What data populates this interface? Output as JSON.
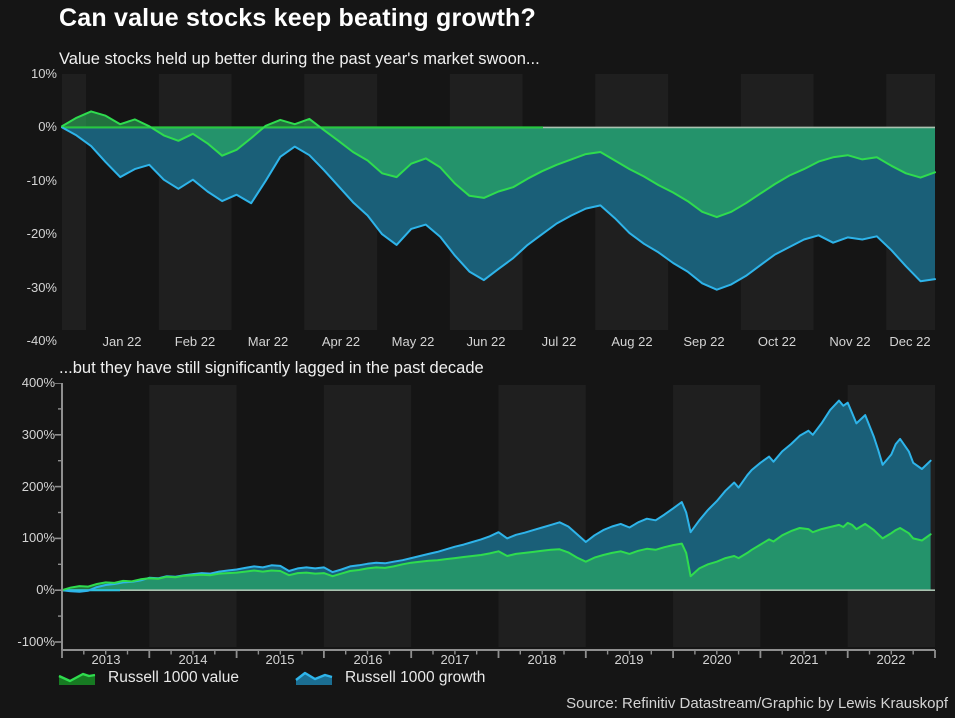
{
  "header": {
    "title": "Can value stocks keep beating growth?",
    "source": "Source: Refinitiv Datastream/Graphic by Lewis Krauskopf"
  },
  "colors": {
    "background": "#151515",
    "band": "#1f1f1f",
    "value_line": "#2fdc4e",
    "growth_line": "#2eb4ea",
    "value_fill": "rgba(46,190,96,0.55)",
    "growth_fill": "#1a5f78",
    "baseline": "#a9c2b0",
    "baseline_accent_top": "#27c840",
    "baseline_accent_bottom": "#2fc4e0",
    "axis": "#8f8f8f",
    "legend_value_fill": "#177a22",
    "legend_growth_fill": "#1b6e92"
  },
  "legend": {
    "items": [
      {
        "id": "value",
        "label": "Russell 1000 value"
      },
      {
        "id": "growth",
        "label": "Russell 1000 growth"
      }
    ]
  },
  "chart_data": [
    {
      "type": "area",
      "title": "Value stocks held up better during the past year's market swoon...",
      "ylabel": "",
      "xlabel": "",
      "y_tick_format": "percent",
      "ylim": [
        -40,
        10
      ],
      "y_ticks": [
        10,
        0,
        -10,
        -20,
        -30,
        -40
      ],
      "x_unit": "months-of-2022",
      "xlim": [
        0,
        12
      ],
      "x_tick_labels": [
        "Jan 22",
        "Feb 22",
        "Mar 22",
        "Apr 22",
        "May 22",
        "Jun 22",
        "Jul 22",
        "Aug 22",
        "Sep 22",
        "Oct 22",
        "Nov 22",
        "Dec 22"
      ],
      "grid": "alternating-month-bands",
      "x": [
        0,
        0.2,
        0.4,
        0.6,
        0.8,
        1,
        1.2,
        1.4,
        1.6,
        1.8,
        2,
        2.2,
        2.4,
        2.6,
        2.8,
        3,
        3.2,
        3.4,
        3.6,
        3.8,
        4,
        4.2,
        4.4,
        4.6,
        4.8,
        5,
        5.2,
        5.4,
        5.6,
        5.8,
        6,
        6.2,
        6.4,
        6.6,
        6.8,
        7,
        7.2,
        7.4,
        7.6,
        7.8,
        8,
        8.2,
        8.4,
        8.6,
        8.8,
        9,
        9.2,
        9.4,
        9.6,
        9.8,
        10,
        10.2,
        10.4,
        10.6,
        10.8,
        11,
        11.2,
        11.4,
        11.6,
        11.8,
        12
      ],
      "series": [
        {
          "name": "Russell 1000 value",
          "values": [
            0.2,
            1.8,
            3.0,
            2.2,
            0.6,
            1.5,
            0.2,
            -1.5,
            -2.5,
            -1.2,
            -3.0,
            -5.3,
            -4.2,
            -2.0,
            0.3,
            1.4,
            0.6,
            1.6,
            -0.5,
            -2.5,
            -4.6,
            -6.2,
            -8.6,
            -9.3,
            -6.8,
            -5.8,
            -7.5,
            -10.5,
            -12.8,
            -13.2,
            -12.0,
            -11.2,
            -9.6,
            -8.2,
            -7.0,
            -6.0,
            -5.0,
            -4.6,
            -6.2,
            -7.8,
            -9.2,
            -10.8,
            -12.2,
            -13.8,
            -15.8,
            -16.8,
            -15.8,
            -14.2,
            -12.4,
            -10.6,
            -9.0,
            -7.8,
            -6.4,
            -5.6,
            -5.2,
            -6.0,
            -5.6,
            -7.2,
            -8.6,
            -9.4,
            -8.4
          ]
        },
        {
          "name": "Russell 1000 growth",
          "values": [
            0.0,
            -1.5,
            -3.5,
            -6.5,
            -9.3,
            -7.8,
            -7.0,
            -9.8,
            -11.5,
            -9.8,
            -12.0,
            -13.8,
            -12.6,
            -14.2,
            -10.0,
            -5.5,
            -3.6,
            -5.2,
            -8.0,
            -11.0,
            -14.0,
            -16.5,
            -20.0,
            -22.0,
            -19.0,
            -18.2,
            -20.5,
            -24.0,
            -27.0,
            -28.6,
            -26.5,
            -24.5,
            -22.0,
            -20.0,
            -18.0,
            -16.5,
            -15.2,
            -14.6,
            -17.0,
            -19.8,
            -21.8,
            -23.4,
            -25.4,
            -27.0,
            -29.2,
            -30.4,
            -29.4,
            -27.8,
            -25.8,
            -23.8,
            -22.4,
            -21.0,
            -20.2,
            -21.6,
            -20.6,
            -21.0,
            -20.4,
            -23.0,
            -26.0,
            -28.8,
            -28.4
          ]
        }
      ]
    },
    {
      "type": "area",
      "title": "...but they have still significantly lagged in the past decade",
      "ylabel": "",
      "xlabel": "",
      "y_tick_format": "percent",
      "ylim": [
        -100,
        400
      ],
      "y_ticks": [
        400,
        300,
        200,
        100,
        0,
        -100
      ],
      "x_unit": "years",
      "xlim": [
        2013,
        2023
      ],
      "x_tick_labels": [
        "2013",
        "2014",
        "2015",
        "2016",
        "2017",
        "2018",
        "2019",
        "2020",
        "2021",
        "2022"
      ],
      "grid": "alternating-year-bands",
      "x": [
        2013.0,
        2013.1,
        2013.2,
        2013.3,
        2013.4,
        2013.5,
        2013.6,
        2013.7,
        2013.8,
        2013.9,
        2014.0,
        2014.1,
        2014.2,
        2014.3,
        2014.4,
        2014.5,
        2014.6,
        2014.7,
        2014.8,
        2014.9,
        2015.0,
        2015.1,
        2015.2,
        2015.3,
        2015.4,
        2015.5,
        2015.6,
        2015.7,
        2015.8,
        2015.9,
        2016.0,
        2016.1,
        2016.2,
        2016.3,
        2016.4,
        2016.5,
        2016.6,
        2016.7,
        2016.8,
        2016.9,
        2017.0,
        2017.1,
        2017.2,
        2017.3,
        2017.4,
        2017.5,
        2017.6,
        2017.7,
        2017.8,
        2017.9,
        2018.0,
        2018.1,
        2018.2,
        2018.3,
        2018.4,
        2018.5,
        2018.6,
        2018.7,
        2018.8,
        2018.9,
        2019.0,
        2019.1,
        2019.2,
        2019.3,
        2019.4,
        2019.5,
        2019.6,
        2019.7,
        2019.8,
        2019.9,
        2020.0,
        2020.1,
        2020.15,
        2020.2,
        2020.3,
        2020.4,
        2020.5,
        2020.6,
        2020.7,
        2020.75,
        2020.85,
        2020.9,
        2021.0,
        2021.1,
        2021.15,
        2021.25,
        2021.35,
        2021.45,
        2021.55,
        2021.6,
        2021.7,
        2021.8,
        2021.9,
        2021.95,
        2022.0,
        2022.05,
        2022.1,
        2022.2,
        2022.3,
        2022.35,
        2022.4,
        2022.5,
        2022.55,
        2022.6,
        2022.7,
        2022.75,
        2022.85,
        2022.95
      ],
      "series": [
        {
          "name": "Russell 1000 value",
          "values": [
            0,
            5,
            8,
            7,
            12,
            15,
            14,
            18,
            17,
            21,
            23,
            22,
            26,
            25,
            28,
            29,
            30,
            29,
            32,
            33,
            34,
            36,
            38,
            36,
            38,
            37,
            29,
            33,
            34,
            32,
            33,
            27,
            32,
            37,
            39,
            42,
            44,
            43,
            46,
            50,
            53,
            55,
            57,
            58,
            60,
            62,
            64,
            66,
            68,
            71,
            75,
            66,
            70,
            72,
            74,
            76,
            78,
            79,
            73,
            63,
            55,
            63,
            68,
            72,
            75,
            70,
            76,
            80,
            78,
            83,
            87,
            90,
            72,
            27,
            42,
            50,
            55,
            62,
            66,
            62,
            72,
            78,
            88,
            98,
            94,
            106,
            114,
            120,
            118,
            112,
            118,
            122,
            126,
            122,
            130,
            126,
            118,
            128,
            116,
            108,
            100,
            110,
            116,
            120,
            110,
            100,
            96,
            108
          ]
        },
        {
          "name": "Russell 1000 growth",
          "values": [
            0,
            -2,
            -3,
            -1,
            6,
            10,
            12,
            15,
            16,
            19,
            24,
            23,
            27,
            26,
            29,
            31,
            33,
            32,
            36,
            38,
            40,
            43,
            46,
            44,
            48,
            47,
            37,
            42,
            44,
            42,
            44,
            35,
            40,
            46,
            48,
            51,
            53,
            52,
            55,
            58,
            62,
            66,
            70,
            74,
            79,
            84,
            88,
            93,
            98,
            104,
            112,
            100,
            107,
            111,
            116,
            121,
            126,
            131,
            123,
            108,
            93,
            106,
            116,
            123,
            128,
            121,
            131,
            138,
            135,
            146,
            158,
            170,
            150,
            112,
            135,
            155,
            172,
            192,
            208,
            198,
            222,
            232,
            246,
            258,
            248,
            268,
            282,
            298,
            308,
            300,
            322,
            348,
            366,
            356,
            362,
            342,
            322,
            338,
            296,
            270,
            242,
            262,
            282,
            292,
            268,
            246,
            234,
            250
          ]
        }
      ]
    }
  ]
}
